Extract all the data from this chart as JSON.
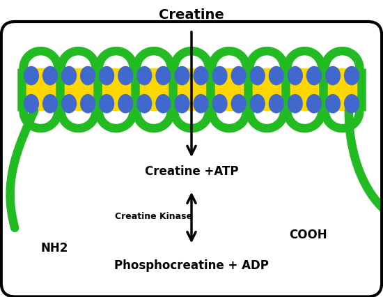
{
  "title": "Creatine",
  "membrane_color": "#FFD700",
  "green_color": "#22BB22",
  "circle_color": "#4169CD",
  "border_color": "#000000",
  "bg_color": "#FFFFFF",
  "label_creatine_atp": "Creatine +ATP",
  "label_creatine_kinase": "Creatine Kinase",
  "label_phosphocreatine": "Phosphocreatine + ADP",
  "label_nh2": "NH2",
  "label_cooh": "COOH",
  "n_loops": 9,
  "n_circles": 18
}
